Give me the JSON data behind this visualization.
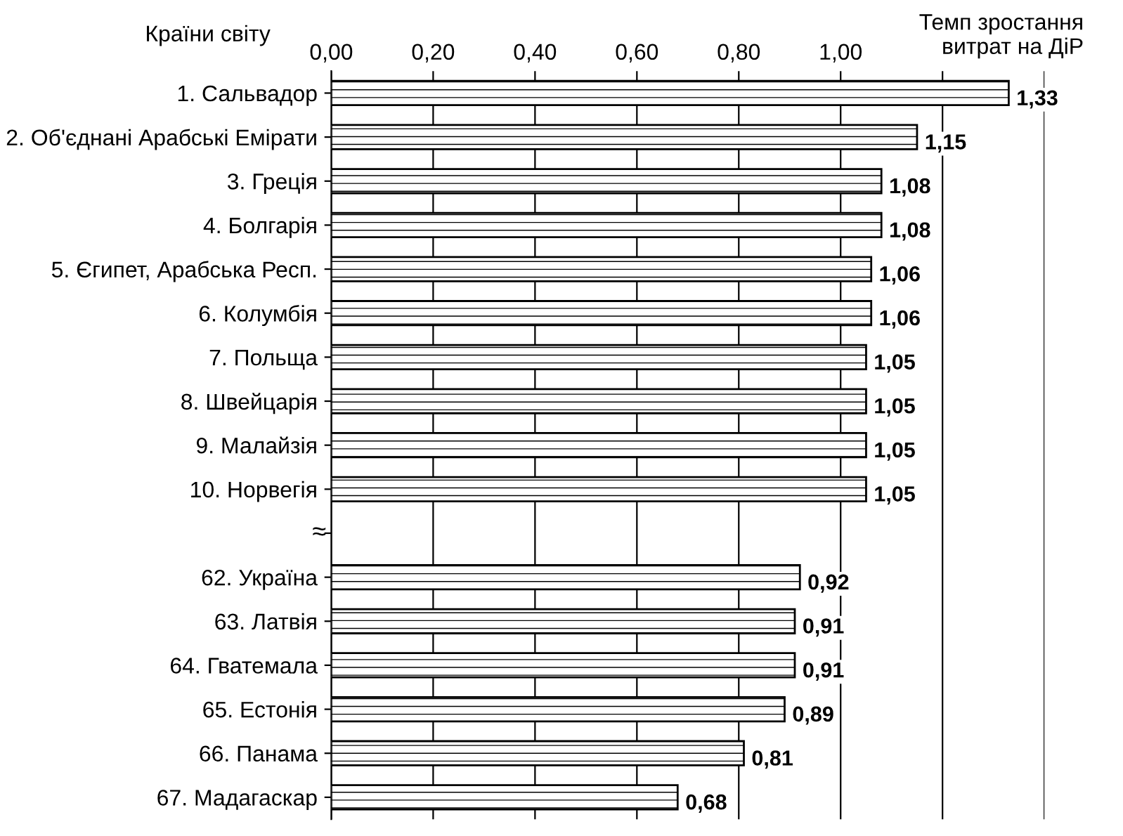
{
  "chart_data": {
    "type": "bar",
    "orientation": "horizontal",
    "xlabel": "Темп зростання\nвитрат на ДіР",
    "ylabel": "Країни світу",
    "categories": [
      "1. Сальвадор",
      "2. Об'єднані Арабські Емірати",
      "3. Греція",
      "4. Болгарія",
      "5. Єгипет, Арабська Респ.",
      "6. Колумбія",
      "7. Польща",
      "8. Швейцарія",
      "9. Малайзія",
      "10. Норвегія",
      null,
      "62. Україна",
      "63. Латвія",
      "64. Гватемала",
      "65. Естонія",
      "66. Панама",
      "67. Мадагаскар"
    ],
    "values": [
      1.33,
      1.15,
      1.08,
      1.08,
      1.06,
      1.06,
      1.05,
      1.05,
      1.05,
      1.05,
      null,
      0.92,
      0.91,
      0.91,
      0.89,
      0.81,
      0.68
    ],
    "value_labels": [
      "1,33",
      "1,15",
      "1,08",
      "1,08",
      "1,06",
      "1,06",
      "1,05",
      "1,05",
      "1,05",
      "1,05",
      null,
      "0,92",
      "0,91",
      "0,91",
      "0,89",
      "0,81",
      "0,68"
    ],
    "color": "#000000",
    "xlim": [
      0,
      1.4
    ],
    "xticks": [
      {
        "value": 0,
        "label": "0,00"
      },
      {
        "value": 0.2,
        "label": "0,20"
      },
      {
        "value": 0.4,
        "label": "0,40"
      },
      {
        "value": 0.6,
        "label": "0,60"
      },
      {
        "value": 0.8,
        "label": "0,80"
      },
      {
        "value": 1.0,
        "label": "1,00"
      },
      {
        "value": 1.2,
        "label": null
      },
      {
        "value": 1.4,
        "label": null
      }
    ],
    "grid": "x",
    "legend": false,
    "annotations": [
      "≈"
    ]
  }
}
